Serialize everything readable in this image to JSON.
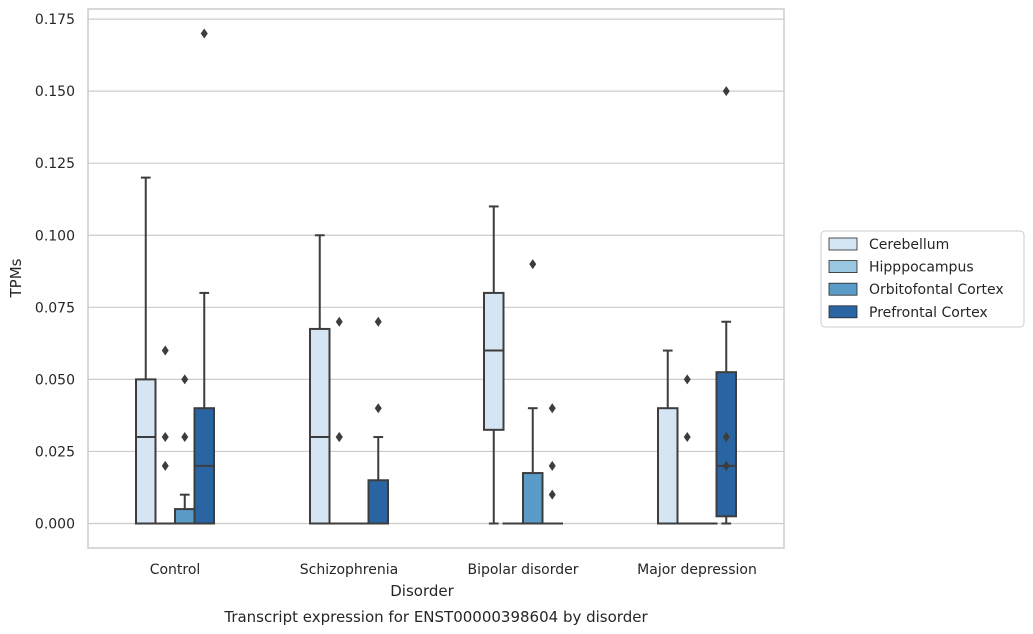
{
  "chart_data": {
    "type": "boxplot",
    "caption": "Transcript expression for ENST00000398604 by disorder",
    "xlabel": "Disorder",
    "ylabel": "TPMs",
    "ylim": [
      -0.0085,
      0.1785
    ],
    "yticks": [
      0.0,
      0.025,
      0.05,
      0.075,
      0.1,
      0.125,
      0.15,
      0.175
    ],
    "ytick_labels": [
      "0.000",
      "0.025",
      "0.050",
      "0.075",
      "0.100",
      "0.125",
      "0.150",
      "0.175"
    ],
    "grid": true,
    "legend_position": "center-right, outside plot",
    "categories": [
      "Control",
      "Schizophrenia",
      "Bipolar disorder",
      "Major depression"
    ],
    "series": [
      {
        "name": "Cerebellum",
        "color": "#d6e5f3",
        "boxes": [
          {
            "q1": 0.0,
            "median": 0.03,
            "q3": 0.05,
            "whisker_low": 0.0,
            "whisker_high": 0.12,
            "outliers": []
          },
          {
            "q1": 0.0,
            "median": 0.03,
            "q3": 0.0675,
            "whisker_low": 0.0,
            "whisker_high": 0.1,
            "outliers": []
          },
          {
            "q1": 0.0325,
            "median": 0.06,
            "q3": 0.08,
            "whisker_low": 0.0,
            "whisker_high": 0.11,
            "outliers": []
          },
          {
            "q1": 0.0,
            "median": 0.0,
            "q3": 0.04,
            "whisker_low": 0.0,
            "whisker_high": 0.06,
            "outliers": []
          }
        ]
      },
      {
        "name": "Hipppocampus",
        "color": "#9ac7e0",
        "boxes": [
          {
            "q1": 0.0,
            "median": 0.0,
            "q3": 0.0,
            "whisker_low": 0.0,
            "whisker_high": 0.0,
            "outliers": [
              0.02,
              0.03,
              0.06
            ]
          },
          {
            "q1": 0.0,
            "median": 0.0,
            "q3": 0.0,
            "whisker_low": 0.0,
            "whisker_high": 0.0,
            "outliers": [
              0.03,
              0.03,
              0.07
            ]
          },
          {
            "q1": 0.0,
            "median": 0.0,
            "q3": 0.0,
            "whisker_low": 0.0,
            "whisker_high": 0.0,
            "outliers": []
          },
          {
            "q1": 0.0,
            "median": 0.0,
            "q3": 0.0,
            "whisker_low": 0.0,
            "whisker_high": 0.0,
            "outliers": [
              0.03,
              0.05
            ]
          }
        ]
      },
      {
        "name": "Orbitofontal Cortex",
        "color": "#5a9bc8",
        "boxes": [
          {
            "q1": 0.0,
            "median": 0.0,
            "q3": 0.005,
            "whisker_low": 0.0,
            "whisker_high": 0.01,
            "outliers": [
              0.03,
              0.05
            ]
          },
          {
            "q1": 0.0,
            "median": 0.0,
            "q3": 0.0,
            "whisker_low": 0.0,
            "whisker_high": 0.0,
            "outliers": []
          },
          {
            "q1": 0.0,
            "median": 0.0,
            "q3": 0.0175,
            "whisker_low": 0.0,
            "whisker_high": 0.04,
            "outliers": [
              0.09
            ]
          },
          {
            "q1": 0.0,
            "median": 0.0,
            "q3": 0.0,
            "whisker_low": 0.0,
            "whisker_high": 0.0,
            "outliers": []
          }
        ]
      },
      {
        "name": "Prefrontal Cortex",
        "color": "#2a65a3",
        "boxes": [
          {
            "q1": 0.0,
            "median": 0.02,
            "q3": 0.04,
            "whisker_low": 0.0,
            "whisker_high": 0.08,
            "outliers": [
              0.17
            ]
          },
          {
            "q1": 0.0,
            "median": 0.0,
            "q3": 0.015,
            "whisker_low": 0.0,
            "whisker_high": 0.03,
            "outliers": [
              0.04,
              0.07
            ]
          },
          {
            "q1": 0.0,
            "median": 0.0,
            "q3": 0.0,
            "whisker_low": 0.0,
            "whisker_high": 0.0,
            "outliers": [
              0.01,
              0.02,
              0.04
            ]
          },
          {
            "q1": 0.0025,
            "median": 0.02,
            "q3": 0.0525,
            "whisker_low": 0.0,
            "whisker_high": 0.07,
            "outliers": [
              0.02,
              0.03,
              0.15
            ]
          }
        ]
      }
    ]
  }
}
